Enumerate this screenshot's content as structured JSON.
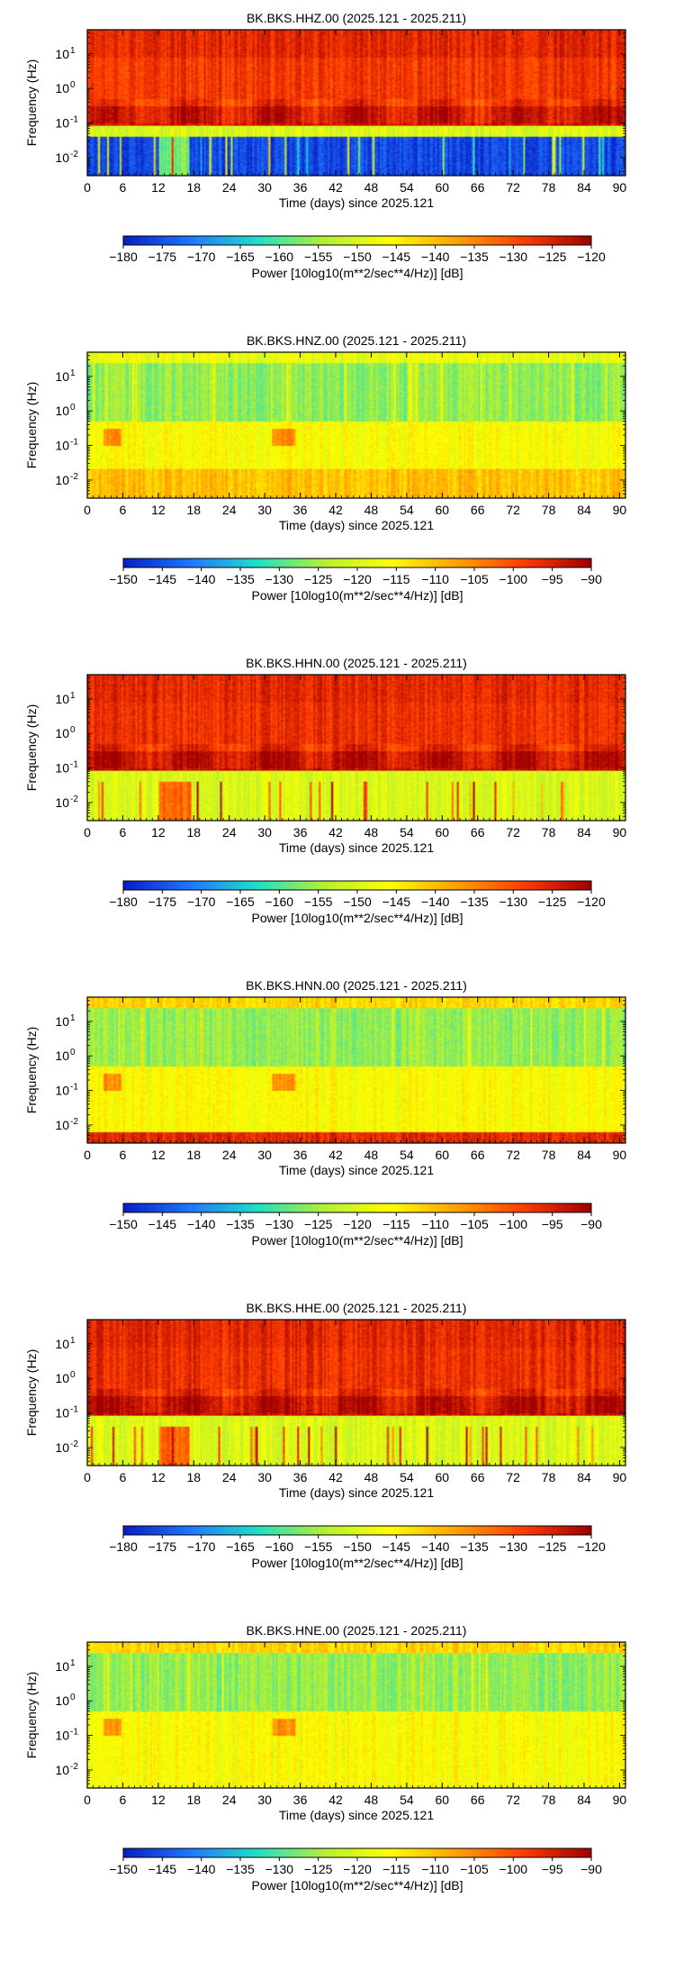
{
  "chart_data": [
    {
      "type": "heatmap",
      "title": "BK.BKS.HHZ.00 (2025.121 - 2025.211)",
      "xlabel": "Time (days) since 2025.121",
      "ylabel": "Frequency (Hz)",
      "x_ticks": [
        0,
        6,
        12,
        18,
        24,
        30,
        36,
        42,
        48,
        54,
        60,
        66,
        72,
        78,
        84,
        90
      ],
      "xlim": [
        0,
        91
      ],
      "y_scale": "log",
      "y_ticks": [
        {
          "base": "10",
          "exp": "1",
          "value": 10
        },
        {
          "base": "10",
          "exp": "0",
          "value": 1
        },
        {
          "base": "10",
          "exp": "-1",
          "value": 0.1
        },
        {
          "base": "10",
          "exp": "-2",
          "value": 0.01
        }
      ],
      "ylim": [
        0.003,
        50
      ],
      "colorbar": {
        "label": "Power [10log10(m**2/sec**4/Hz)] [dB]",
        "ticks": [
          "-180",
          "-175",
          "-170",
          "-165",
          "-160",
          "-155",
          "-150",
          "-145",
          "-140",
          "-135",
          "-130",
          "-125",
          "-120"
        ],
        "range": [
          -180,
          -120
        ]
      },
      "colormap": [
        "#0a1ec8",
        "#1e78ff",
        "#1ee0c8",
        "#b4f032",
        "#ffff00",
        "#ffa000",
        "#ff3c00",
        "#a00000"
      ],
      "pattern": "broadband",
      "bands": [
        {
          "range_hz": [
            8,
            50
          ],
          "db": -126
        },
        {
          "range_hz": [
            0.3,
            8
          ],
          "db": -128
        },
        {
          "range_hz": [
            0.08,
            0.3
          ],
          "db": -124
        },
        {
          "range_hz": [
            0.04,
            0.08
          ],
          "db": -150
        },
        {
          "range_hz": [
            0.003,
            0.04
          ],
          "db": -176
        }
      ]
    },
    {
      "type": "heatmap",
      "title": "BK.BKS.HNZ.00 (2025.121 - 2025.211)",
      "xlabel": "Time (days) since 2025.121",
      "ylabel": "Frequency (Hz)",
      "x_ticks": [
        0,
        6,
        12,
        18,
        24,
        30,
        36,
        42,
        48,
        54,
        60,
        66,
        72,
        78,
        84,
        90
      ],
      "xlim": [
        0,
        91
      ],
      "y_scale": "log",
      "y_ticks": [
        {
          "base": "10",
          "exp": "1",
          "value": 10
        },
        {
          "base": "10",
          "exp": "0",
          "value": 1
        },
        {
          "base": "10",
          "exp": "-1",
          "value": 0.1
        },
        {
          "base": "10",
          "exp": "-2",
          "value": 0.01
        }
      ],
      "ylim": [
        0.003,
        50
      ],
      "colorbar": {
        "label": "Power [10log10(m**2/sec**4/Hz)] [dB]",
        "ticks": [
          "-150",
          "-145",
          "-140",
          "-135",
          "-130",
          "-125",
          "-120",
          "-115",
          "-110",
          "-105",
          "-100",
          "-95",
          "-90"
        ],
        "range": [
          -150,
          -90
        ]
      },
      "colormap": [
        "#0a1ec8",
        "#1e78ff",
        "#1ee0c8",
        "#b4f032",
        "#ffff00",
        "#ffa000",
        "#ff3c00",
        "#a00000"
      ],
      "pattern": "strong",
      "bands": [
        {
          "range_hz": [
            25,
            50
          ],
          "db": -118
        },
        {
          "range_hz": [
            0.5,
            25
          ],
          "db": -126
        },
        {
          "range_hz": [
            0.02,
            0.5
          ],
          "db": -116
        },
        {
          "range_hz": [
            0.003,
            0.02
          ],
          "db": -110
        }
      ]
    },
    {
      "type": "heatmap",
      "title": "BK.BKS.HHN.00 (2025.121 - 2025.211)",
      "xlabel": "Time (days) since 2025.121",
      "ylabel": "Frequency (Hz)",
      "x_ticks": [
        0,
        6,
        12,
        18,
        24,
        30,
        36,
        42,
        48,
        54,
        60,
        66,
        72,
        78,
        84,
        90
      ],
      "xlim": [
        0,
        91
      ],
      "y_scale": "log",
      "y_ticks": [
        {
          "base": "10",
          "exp": "1",
          "value": 10
        },
        {
          "base": "10",
          "exp": "0",
          "value": 1
        },
        {
          "base": "10",
          "exp": "-1",
          "value": 0.1
        },
        {
          "base": "10",
          "exp": "-2",
          "value": 0.01
        }
      ],
      "ylim": [
        0.003,
        50
      ],
      "colorbar": {
        "label": "Power [10log10(m**2/sec**4/Hz)] [dB]",
        "ticks": [
          "-180",
          "-175",
          "-170",
          "-165",
          "-160",
          "-155",
          "-150",
          "-145",
          "-140",
          "-135",
          "-130",
          "-125",
          "-120"
        ],
        "range": [
          -180,
          -120
        ]
      },
      "colormap": [
        "#0a1ec8",
        "#1e78ff",
        "#1ee0c8",
        "#b4f032",
        "#ffff00",
        "#ffa000",
        "#ff3c00",
        "#a00000"
      ],
      "pattern": "broadband",
      "bands": [
        {
          "range_hz": [
            8,
            50
          ],
          "db": -126
        },
        {
          "range_hz": [
            0.3,
            8
          ],
          "db": -127
        },
        {
          "range_hz": [
            0.08,
            0.3
          ],
          "db": -123
        },
        {
          "range_hz": [
            0.003,
            0.08
          ],
          "db": -150
        }
      ]
    },
    {
      "type": "heatmap",
      "title": "BK.BKS.HNN.00 (2025.121 - 2025.211)",
      "xlabel": "Time (days) since 2025.121",
      "ylabel": "Frequency (Hz)",
      "x_ticks": [
        0,
        6,
        12,
        18,
        24,
        30,
        36,
        42,
        48,
        54,
        60,
        66,
        72,
        78,
        84,
        90
      ],
      "xlim": [
        0,
        91
      ],
      "y_scale": "log",
      "y_ticks": [
        {
          "base": "10",
          "exp": "1",
          "value": 10
        },
        {
          "base": "10",
          "exp": "0",
          "value": 1
        },
        {
          "base": "10",
          "exp": "-1",
          "value": 0.1
        },
        {
          "base": "10",
          "exp": "-2",
          "value": 0.01
        }
      ],
      "ylim": [
        0.003,
        50
      ],
      "colorbar": {
        "label": "Power [10log10(m**2/sec**4/Hz)] [dB]",
        "ticks": [
          "-150",
          "-145",
          "-140",
          "-135",
          "-130",
          "-125",
          "-120",
          "-115",
          "-110",
          "-105",
          "-100",
          "-95",
          "-90"
        ],
        "range": [
          -150,
          -90
        ]
      },
      "colormap": [
        "#0a1ec8",
        "#1e78ff",
        "#1ee0c8",
        "#b4f032",
        "#ffff00",
        "#ffa000",
        "#ff3c00",
        "#a00000"
      ],
      "pattern": "strong",
      "bands": [
        {
          "range_hz": [
            25,
            50
          ],
          "db": -112
        },
        {
          "range_hz": [
            0.5,
            25
          ],
          "db": -126
        },
        {
          "range_hz": [
            0.006,
            0.5
          ],
          "db": -116
        },
        {
          "range_hz": [
            0.003,
            0.006
          ],
          "db": -96
        }
      ]
    },
    {
      "type": "heatmap",
      "title": "BK.BKS.HHE.00 (2025.121 - 2025.211)",
      "xlabel": "Time (days) since 2025.121",
      "ylabel": "Frequency (Hz)",
      "x_ticks": [
        0,
        6,
        12,
        18,
        24,
        30,
        36,
        42,
        48,
        54,
        60,
        66,
        72,
        78,
        84,
        90
      ],
      "xlim": [
        0,
        91
      ],
      "y_scale": "log",
      "y_ticks": [
        {
          "base": "10",
          "exp": "1",
          "value": 10
        },
        {
          "base": "10",
          "exp": "0",
          "value": 1
        },
        {
          "base": "10",
          "exp": "-1",
          "value": 0.1
        },
        {
          "base": "10",
          "exp": "-2",
          "value": 0.01
        }
      ],
      "ylim": [
        0.003,
        50
      ],
      "colorbar": {
        "label": "Power [10log10(m**2/sec**4/Hz)] [dB]",
        "ticks": [
          "-180",
          "-175",
          "-170",
          "-165",
          "-160",
          "-155",
          "-150",
          "-145",
          "-140",
          "-135",
          "-130",
          "-125",
          "-120"
        ],
        "range": [
          -180,
          -120
        ]
      },
      "colormap": [
        "#0a1ec8",
        "#1e78ff",
        "#1ee0c8",
        "#b4f032",
        "#ffff00",
        "#ffa000",
        "#ff3c00",
        "#a00000"
      ],
      "pattern": "broadband",
      "bands": [
        {
          "range_hz": [
            8,
            50
          ],
          "db": -126
        },
        {
          "range_hz": [
            0.3,
            8
          ],
          "db": -127
        },
        {
          "range_hz": [
            0.08,
            0.3
          ],
          "db": -123
        },
        {
          "range_hz": [
            0.003,
            0.08
          ],
          "db": -150
        }
      ]
    },
    {
      "type": "heatmap",
      "title": "BK.BKS.HNE.00 (2025.121 - 2025.211)",
      "xlabel": "Time (days) since 2025.121",
      "ylabel": "Frequency (Hz)",
      "x_ticks": [
        0,
        6,
        12,
        18,
        24,
        30,
        36,
        42,
        48,
        54,
        60,
        66,
        72,
        78,
        84,
        90
      ],
      "xlim": [
        0,
        91
      ],
      "y_scale": "log",
      "y_ticks": [
        {
          "base": "10",
          "exp": "1",
          "value": 10
        },
        {
          "base": "10",
          "exp": "0",
          "value": 1
        },
        {
          "base": "10",
          "exp": "-1",
          "value": 0.1
        },
        {
          "base": "10",
          "exp": "-2",
          "value": 0.01
        }
      ],
      "ylim": [
        0.003,
        50
      ],
      "colorbar": {
        "label": "Power [10log10(m**2/sec**4/Hz)] [dB]",
        "ticks": [
          "-150",
          "-145",
          "-140",
          "-135",
          "-130",
          "-125",
          "-120",
          "-115",
          "-110",
          "-105",
          "-100",
          "-95",
          "-90"
        ],
        "range": [
          -150,
          -90
        ]
      },
      "colormap": [
        "#0a1ec8",
        "#1e78ff",
        "#1ee0c8",
        "#b4f032",
        "#ffff00",
        "#ffa000",
        "#ff3c00",
        "#a00000"
      ],
      "pattern": "strong",
      "bands": [
        {
          "range_hz": [
            25,
            50
          ],
          "db": -112
        },
        {
          "range_hz": [
            0.5,
            25
          ],
          "db": -126
        },
        {
          "range_hz": [
            0.003,
            0.5
          ],
          "db": -116
        }
      ]
    }
  ]
}
